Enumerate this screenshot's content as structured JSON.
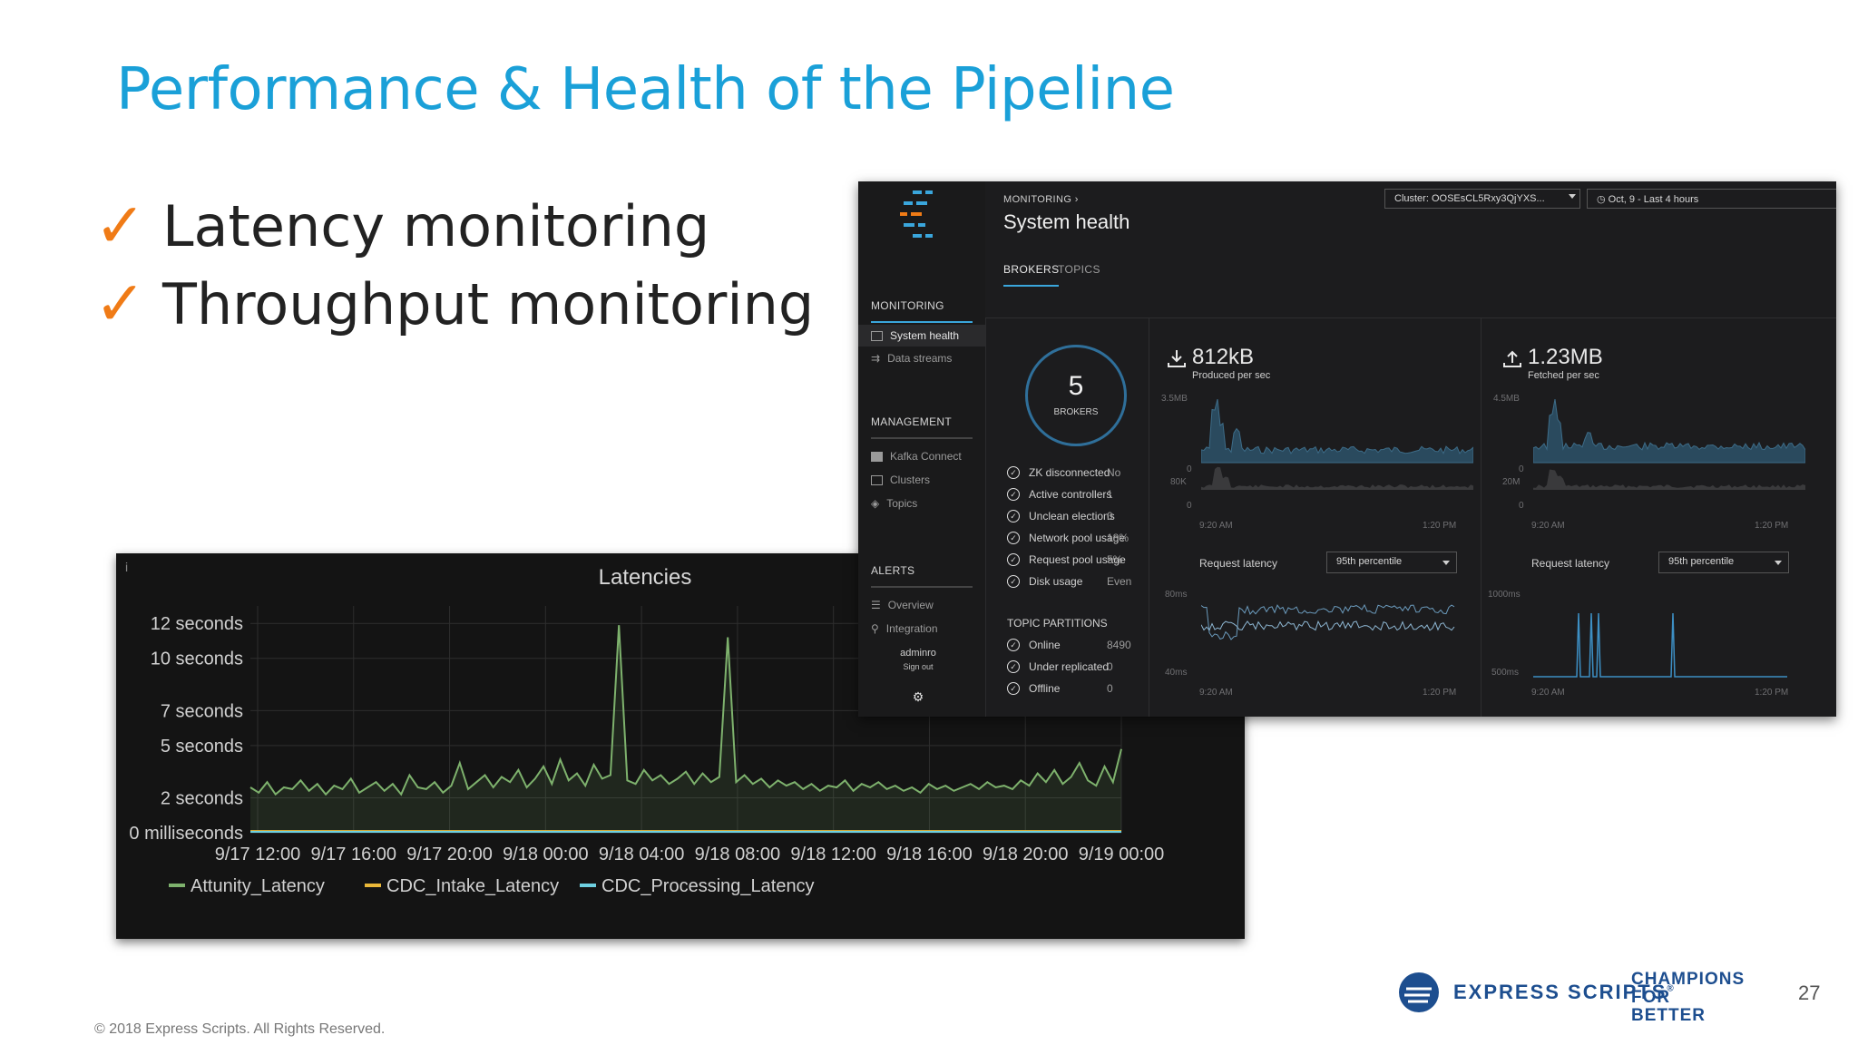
{
  "slide": {
    "title": "Performance & Health of the Pipeline",
    "bullets": [
      "Latency monitoring",
      "Throughput monitoring"
    ],
    "check_glyph": "✓",
    "copyright": "© 2018 Express Scripts. All Rights Reserved.",
    "page_number": "27",
    "logo_brand": "EXPRESS SCRIPTS",
    "logo_reg": "®",
    "champions_lines": [
      "CHAMPIONS",
      "FOR",
      "BETTER"
    ],
    "accent_color": "#1aa0d8",
    "check_color": "#f07b16"
  },
  "chart_data": {
    "type": "line",
    "title": "Latencies",
    "y_tick_labels": [
      "12 seconds",
      "10 seconds",
      "7 seconds",
      "5 seconds",
      "2 seconds",
      "0 milliseconds"
    ],
    "y_tick_values": [
      12,
      10,
      7,
      5,
      2,
      0
    ],
    "ylim": [
      0,
      13
    ],
    "x_tick_labels": [
      "9/17 12:00",
      "9/17 16:00",
      "9/17 20:00",
      "9/18 00:00",
      "9/18 04:00",
      "9/18 08:00",
      "9/18 12:00",
      "9/18 16:00",
      "9/18 20:00",
      "9/19 00:00"
    ],
    "grid": true,
    "legend_position": "bottom-left",
    "series": [
      {
        "name": "Attunity_Latency",
        "color": "#7eb26d",
        "values": [
          2.6,
          2.3,
          2.9,
          2.2,
          2.6,
          2.5,
          3.0,
          2.4,
          2.8,
          2.2,
          2.7,
          2.5,
          3.1,
          2.3,
          2.6,
          2.9,
          2.4,
          2.8,
          2.2,
          3.3,
          2.6,
          2.5,
          2.9,
          2.3,
          2.7,
          4.0,
          2.5,
          2.9,
          3.3,
          2.6,
          3.2,
          2.9,
          3.6,
          2.6,
          3.1,
          3.8,
          2.8,
          4.2,
          3.0,
          3.4,
          2.7,
          3.9,
          3.1,
          3.3,
          11.9,
          3.0,
          2.8,
          3.6,
          3.0,
          3.3,
          2.8,
          3.1,
          3.5,
          2.8,
          3.4,
          2.9,
          3.2,
          11.2,
          2.9,
          3.3,
          2.8,
          3.1,
          2.6,
          3.0,
          2.7,
          2.9,
          2.5,
          2.8,
          2.4,
          2.7,
          2.6,
          3.0,
          2.4,
          2.8,
          2.6,
          2.9,
          2.5,
          2.7,
          2.4,
          2.6,
          2.3,
          2.8,
          2.5,
          2.7,
          2.4,
          2.6,
          2.8,
          2.5,
          2.9,
          2.6,
          2.7,
          2.5,
          3.0,
          2.7,
          3.4,
          2.9,
          3.6,
          2.8,
          3.2,
          4.0,
          3.0,
          2.7,
          3.8,
          2.9,
          4.8
        ]
      },
      {
        "name": "CDC_Intake_Latency",
        "color": "#eab839",
        "values": [
          0.1,
          0.1,
          0.1,
          0.1,
          0.1,
          0.1,
          0.1,
          0.1,
          0.1,
          0.1,
          0.1,
          0.1,
          0.1,
          0.1,
          0.1,
          0.1,
          0.1,
          0.1,
          0.1,
          0.1,
          0.1,
          0.1,
          0.1,
          0.1,
          0.1,
          0.1,
          0.1,
          0.1,
          0.1,
          0.1,
          0.1,
          0.1,
          0.1,
          0.1,
          0.1,
          0.1,
          0.1,
          0.1,
          0.1,
          0.1
        ]
      },
      {
        "name": "CDC_Processing_Latency",
        "color": "#6ed0e0",
        "values": [
          0.05,
          0.05,
          0.05,
          0.05,
          0.05,
          0.05,
          0.05,
          0.05,
          0.05,
          0.05,
          0.05,
          0.05,
          0.05,
          0.05,
          0.05,
          0.05,
          0.05,
          0.05,
          0.05,
          0.05,
          0.05,
          0.05,
          0.05,
          0.05,
          0.05,
          0.05,
          0.05,
          0.05,
          0.05,
          0.05,
          0.05,
          0.05,
          0.05,
          0.05,
          0.05,
          0.05,
          0.05,
          0.05,
          0.05,
          0.05
        ]
      }
    ]
  },
  "monitor": {
    "breadcrumb": "MONITORING",
    "breadcrumb_sep": "›",
    "page_title": "System health",
    "cluster_select": "Cluster: OOSEsCL5Rxy3QjYXS...",
    "time_select": "Oct, 9 - Last 4 hours",
    "tabs": [
      {
        "label": "BROKERS",
        "active": true
      },
      {
        "label": "TOPICS",
        "active": false
      }
    ],
    "sidebar": {
      "monitoring_heading": "MONITORING",
      "monitoring_items": [
        "System health",
        "Data streams"
      ],
      "management_heading": "MANAGEMENT",
      "management_items": [
        "Kafka Connect",
        "Clusters",
        "Topics"
      ],
      "alerts_heading": "ALERTS",
      "alerts_items": [
        "Overview",
        "Integration"
      ],
      "user": "adminro",
      "signout": "Sign out"
    },
    "brokers": {
      "count": "5",
      "label": "BROKERS"
    },
    "broker_stats": [
      {
        "label": "ZK disconnected",
        "value": "No"
      },
      {
        "label": "Active controllers",
        "value": "1"
      },
      {
        "label": "Unclean elections",
        "value": "0"
      },
      {
        "label": "Network pool usage",
        "value": "18%"
      },
      {
        "label": "Request pool usage",
        "value": "5%"
      },
      {
        "label": "Disk usage",
        "value": "Even"
      }
    ],
    "partitions_heading": "TOPIC PARTITIONS",
    "partition_stats": [
      {
        "label": "Online",
        "value": "8490"
      },
      {
        "label": "Under replicated",
        "value": "0"
      },
      {
        "label": "Offline",
        "value": "0"
      }
    ],
    "produced": {
      "value": "812kB",
      "label": "Produced per sec",
      "y_top": "3.5MB",
      "y_zero": "0",
      "y_top2": "80K",
      "y_zero2": "0",
      "x_start": "9:20 AM",
      "x_end": "1:20 PM"
    },
    "fetched": {
      "value": "1.23MB",
      "label": "Fetched per sec",
      "y_top": "4.5MB",
      "y_zero": "0",
      "y_top2": "20M",
      "y_zero2": "0",
      "x_start": "9:20 AM",
      "x_end": "1:20 PM"
    },
    "latency_left": {
      "label": "Request latency",
      "select": "95th percentile",
      "y_top": "80ms",
      "y_bottom": "40ms",
      "x_start": "9:20 AM",
      "x_end": "1:20 PM"
    },
    "latency_right": {
      "label": "Request latency",
      "select": "95th percentile",
      "y_top": "1000ms",
      "y_bottom": "500ms",
      "x_start": "9:20 AM",
      "x_end": "1:20 PM"
    }
  }
}
